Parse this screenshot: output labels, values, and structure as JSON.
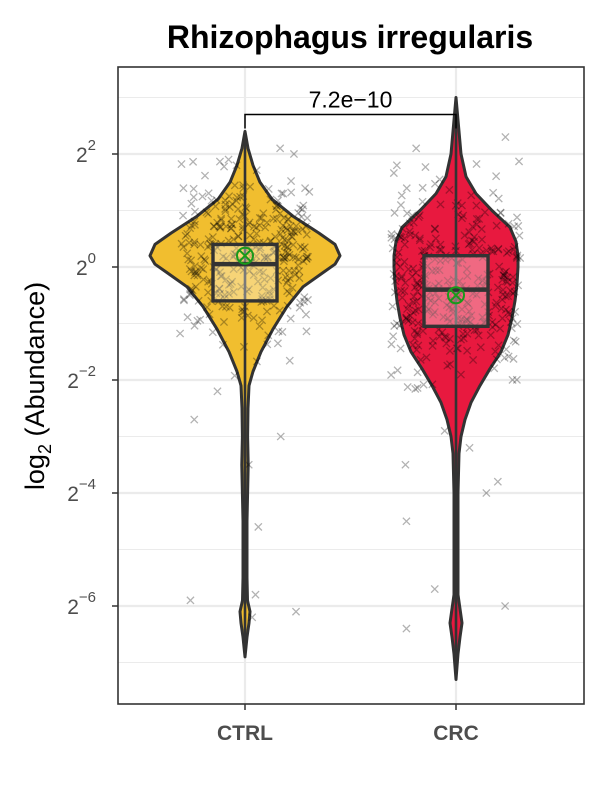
{
  "chart_data": {
    "type": "violin",
    "title": "Rhizophagus irregularis",
    "ylabel_prefix": "log",
    "ylabel_subscript": "2",
    "ylabel_suffix": " (Abundance)",
    "xlabel": "",
    "y_scale": "log2",
    "ylim_log2": [
      -7.5,
      3.7
    ],
    "y_ticks": [
      {
        "base": "2",
        "exp": "2",
        "value_log2": 2
      },
      {
        "base": "2",
        "exp": "0",
        "value_log2": 0
      },
      {
        "base": "2",
        "exp": "−2",
        "value_log2": -2
      },
      {
        "base": "2",
        "exp": "−4",
        "value_log2": -4
      },
      {
        "base": "2",
        "exp": "−6",
        "value_log2": -6
      }
    ],
    "grid": true,
    "categories": [
      "CTRL",
      "CRC"
    ],
    "groups": [
      {
        "name": "CTRL",
        "color": "#F1BE2F",
        "box_log2": {
          "q1": -0.6,
          "median": 0.05,
          "q3": 0.4
        },
        "mean_log2": 0.2,
        "range_log2": [
          -6.9,
          2.4
        ]
      },
      {
        "name": "CRC",
        "color": "#E8193F",
        "box_log2": {
          "q1": -1.05,
          "median": -0.4,
          "q3": 0.2
        },
        "mean_log2": -0.5,
        "range_log2": [
          -7.3,
          3.0
        ]
      }
    ],
    "comparison": {
      "groups": [
        "CTRL",
        "CRC"
      ],
      "p_value": "7.2e−10",
      "y_log2": 2.7
    },
    "mean_marker_color": "#1a9a1a"
  }
}
